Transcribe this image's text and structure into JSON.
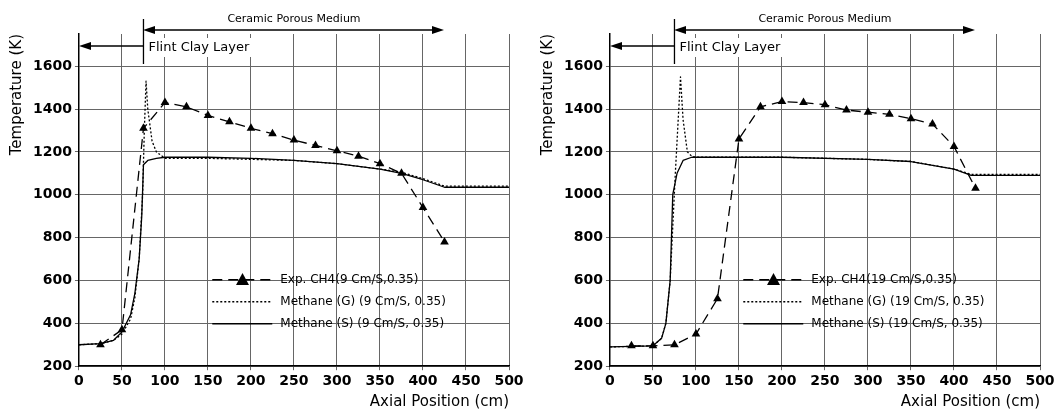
{
  "chart_data": [
    {
      "type": "line",
      "xlabel": "Axial Position (cm)",
      "ylabel": "Temperature (K)",
      "annotations": [
        "Ceramic Porous Medium",
        "Flint Clay Layer"
      ],
      "xlim": [
        0,
        500
      ],
      "xticks": [
        0,
        50,
        100,
        150,
        200,
        250,
        300,
        350,
        400,
        450,
        500
      ],
      "ylim": [
        200,
        1750
      ],
      "yticks": [
        200,
        400,
        600,
        800,
        1000,
        1200,
        1400,
        1600
      ],
      "grid": true,
      "legend": "bottom right",
      "series": [
        {
          "name": "Exp. CH4(9 Cm/S,0.35)",
          "color": "#000000",
          "marker": "triangle",
          "line_style": "dashed",
          "x": [
            25,
            50,
            75,
            100,
            125,
            150,
            175,
            200,
            225,
            250,
            275,
            300,
            325,
            350,
            375,
            400,
            425
          ],
          "values": [
            300,
            370,
            1310,
            1430,
            1410,
            1370,
            1340,
            1310,
            1285,
            1255,
            1230,
            1205,
            1180,
            1145,
            1100,
            940,
            780
          ]
        },
        {
          "name": "Methane (G) (9 Cm/S, 0.35)",
          "color": "#000000",
          "marker": "none",
          "line_style": "dotted",
          "x": [
            0,
            25,
            40,
            50,
            60,
            65,
            70,
            74,
            76,
            78,
            80,
            85,
            90,
            100,
            150,
            200,
            250,
            300,
            350,
            375,
            400,
            425,
            500
          ],
          "values": [
            300,
            305,
            320,
            350,
            420,
            520,
            700,
            1000,
            1300,
            1530,
            1400,
            1250,
            1200,
            1170,
            1170,
            1165,
            1160,
            1145,
            1120,
            1105,
            1075,
            1040,
            1040
          ]
        },
        {
          "name": "Methane (S) (9 Cm/S, 0.35)",
          "color": "#000000",
          "marker": "none",
          "line_style": "solid",
          "x": [
            0,
            25,
            40,
            50,
            60,
            65,
            70,
            73,
            75,
            80,
            90,
            100,
            150,
            200,
            250,
            300,
            350,
            375,
            400,
            425,
            500
          ],
          "values": [
            300,
            305,
            320,
            360,
            440,
            540,
            700,
            900,
            1140,
            1160,
            1170,
            1175,
            1175,
            1170,
            1160,
            1145,
            1120,
            1100,
            1070,
            1035,
            1035
          ]
        }
      ]
    },
    {
      "type": "line",
      "xlabel": "Axial Position (cm)",
      "ylabel": "Temperature (K)",
      "annotations": [
        "Ceramic Porous Medium",
        "Flint Clay Layer"
      ],
      "xlim": [
        0,
        500
      ],
      "xticks": [
        0,
        50,
        100,
        150,
        200,
        250,
        300,
        350,
        400,
        450,
        500
      ],
      "ylim": [
        200,
        1750
      ],
      "yticks": [
        200,
        400,
        600,
        800,
        1000,
        1200,
        1400,
        1600
      ],
      "grid": true,
      "legend": "bottom right",
      "series": [
        {
          "name": "Exp. CH4(19 Cm/S,0.35)",
          "color": "#000000",
          "marker": "triangle",
          "line_style": "dashed",
          "x": [
            25,
            50,
            75,
            100,
            125,
            150,
            175,
            200,
            225,
            250,
            275,
            300,
            325,
            350,
            375,
            400,
            425
          ],
          "values": [
            295,
            295,
            300,
            350,
            515,
            1260,
            1410,
            1435,
            1430,
            1420,
            1395,
            1385,
            1375,
            1355,
            1330,
            1225,
            1030
          ]
        },
        {
          "name": "Methane (G) (19 Cm/S, 0.35)",
          "color": "#000000",
          "marker": "none",
          "line_style": "dotted",
          "x": [
            0,
            50,
            60,
            65,
            70,
            73,
            76,
            80,
            82,
            85,
            90,
            95,
            100,
            200,
            300,
            350,
            400,
            420,
            500
          ],
          "values": [
            290,
            295,
            330,
            400,
            600,
            850,
            1100,
            1400,
            1550,
            1350,
            1200,
            1180,
            1175,
            1175,
            1165,
            1155,
            1120,
            1095,
            1095
          ]
        },
        {
          "name": "Methane (S) (19 Cm/S, 0.35)",
          "color": "#000000",
          "marker": "none",
          "line_style": "solid",
          "x": [
            0,
            50,
            60,
            65,
            70,
            73,
            78,
            85,
            95,
            200,
            300,
            350,
            400,
            420,
            500
          ],
          "values": [
            290,
            295,
            330,
            400,
            600,
            1000,
            1100,
            1160,
            1175,
            1175,
            1165,
            1155,
            1120,
            1090,
            1090
          ]
        }
      ]
    }
  ]
}
